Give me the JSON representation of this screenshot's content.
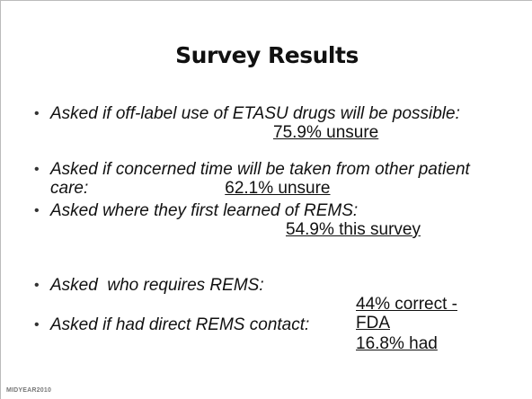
{
  "title": "Survey Results",
  "items": [
    {
      "question": "Asked if off-label use of ETASU drugs will be possible:",
      "answer": "75.9% unsure"
    },
    {
      "question": "Asked if concerned time will be taken from other patient care:",
      "answer": "62.1% unsure"
    },
    {
      "question": "Asked where they first learned of REMS:",
      "answer": "54.9% this survey"
    },
    {
      "question": "Asked  who requires REMS:",
      "answer": "44% correct - FDA"
    },
    {
      "question": "Asked if had direct REMS contact:",
      "answer": "16.8% had"
    }
  ],
  "footer": {
    "logo": "MIDYEAR2010"
  }
}
